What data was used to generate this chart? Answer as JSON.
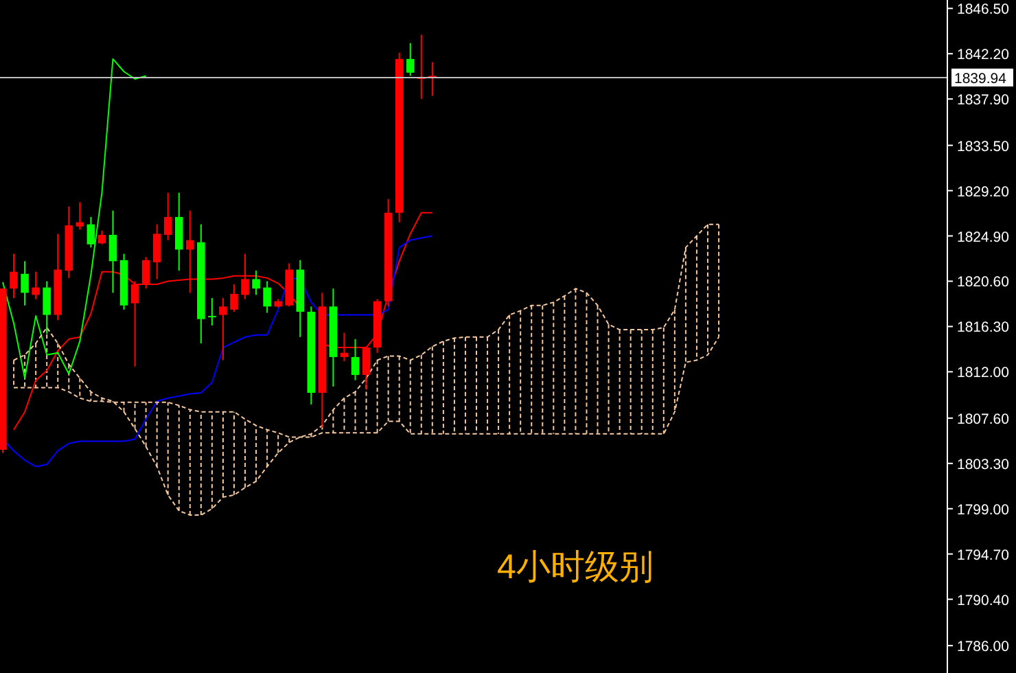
{
  "chart_data": {
    "type": "candlestick",
    "categories": [
      null,
      null,
      null,
      null,
      null,
      null,
      null,
      null,
      null,
      null,
      null,
      null,
      null,
      null,
      null,
      null,
      null,
      null,
      null,
      null,
      null,
      null,
      null,
      null,
      null,
      null,
      null,
      null,
      null,
      null,
      null,
      null,
      null,
      null,
      null,
      null,
      null,
      null,
      null,
      null,
      null,
      null,
      null,
      null,
      null,
      null,
      null,
      null,
      null,
      null,
      null,
      null,
      null,
      null,
      null,
      null,
      null,
      null,
      null,
      null,
      null,
      null,
      null,
      null,
      null,
      null,
      null,
      null,
      null,
      null,
      null,
      null,
      null,
      null,
      null,
      null,
      null,
      null,
      null,
      null,
      null,
      null,
      null,
      null,
      null,
      null
    ],
    "ohlc": [
      [
        1804.6,
        1819.9,
        1804.3,
        1819.9
      ],
      [
        1819.9,
        1823.2,
        1819.0,
        1821.5
      ],
      [
        1821.3,
        1822.5,
        1818.3,
        1819.5
      ],
      [
        1819.3,
        1821.5,
        1818.9,
        1820.0
      ],
      [
        1820.0,
        1820.6,
        1815.6,
        1817.4
      ],
      [
        1817.4,
        1825.1,
        1816.9,
        1821.7
      ],
      [
        1821.6,
        1827.7,
        1820.9,
        1825.9
      ],
      [
        1825.8,
        1828.1,
        1825.5,
        1826.2
      ],
      [
        1826.0,
        1826.7,
        1823.8,
        1824.1
      ],
      [
        1824.2,
        1825.4,
        1824.1,
        1825.0
      ],
      [
        1825.0,
        1827.3,
        1819.5,
        1822.5
      ],
      [
        1822.6,
        1823.2,
        1817.9,
        1818.3
      ],
      [
        1818.5,
        1820.6,
        1812.5,
        1820.3
      ],
      [
        1820.3,
        1822.9,
        1819.9,
        1822.6
      ],
      [
        1822.4,
        1826.0,
        1820.8,
        1825.1
      ],
      [
        1825.0,
        1829.0,
        1824.5,
        1826.7
      ],
      [
        1826.7,
        1829.0,
        1821.6,
        1823.6
      ],
      [
        1823.6,
        1827.3,
        1819.5,
        1824.5
      ],
      [
        1824.3,
        1826.0,
        1814.7,
        1817.0
      ],
      [
        1817.3,
        1819.0,
        1816.4,
        1817.2
      ],
      [
        1817.4,
        1819.0,
        1813.1,
        1818.2
      ],
      [
        1817.9,
        1820.3,
        1817.7,
        1819.4
      ],
      [
        1819.3,
        1823.2,
        1818.9,
        1820.8
      ],
      [
        1820.8,
        1821.6,
        1819.3,
        1819.9
      ],
      [
        1820.0,
        1820.6,
        1817.6,
        1818.2
      ],
      [
        1818.2,
        1818.9,
        1818.1,
        1818.7
      ],
      [
        1818.3,
        1822.3,
        1818.2,
        1821.7
      ],
      [
        1821.7,
        1822.6,
        1815.3,
        1817.7
      ],
      [
        1817.7,
        1818.2,
        1808.9,
        1810.0
      ],
      [
        1810.0,
        1819.5,
        1806.7,
        1818.2
      ],
      [
        1818.2,
        1819.9,
        1810.6,
        1813.4
      ],
      [
        1813.4,
        1815.7,
        1813.0,
        1813.8
      ],
      [
        1813.4,
        1815.1,
        1811.2,
        1811.7
      ],
      [
        1811.7,
        1814.4,
        1810.3,
        1814.3
      ],
      [
        1814.3,
        1818.9,
        1813.8,
        1818.7
      ],
      [
        1818.7,
        1828.4,
        1818.2,
        1827.1
      ],
      [
        1827.1,
        1842.3,
        1826.2,
        1841.7
      ],
      [
        1841.7,
        1843.2,
        1840.1,
        1840.4
      ],
      [
        1839.8,
        1844.0,
        1837.9,
        1840.0
      ],
      [
        1839.9,
        1841.4,
        1838.2,
        1840.1
      ],
      null,
      null,
      null,
      null,
      null,
      null,
      null,
      null,
      null,
      null,
      null,
      null,
      null,
      null,
      null,
      null,
      null,
      null,
      null,
      null,
      null,
      null,
      null,
      null,
      null,
      null,
      null,
      null,
      null,
      null,
      null,
      null,
      null,
      null,
      null,
      null,
      null,
      null,
      null,
      null,
      null,
      null,
      null,
      null,
      null,
      null
    ],
    "series": [
      {
        "type": "line",
        "color": "#ff0000",
        "values": [
          null,
          1806.5,
          1808.2,
          1811.2,
          1812.1,
          1814.0,
          1815.1,
          1815.3,
          1817.5,
          1821.5,
          1821.5,
          1821.2,
          1820.3,
          1820.3,
          1820.3,
          1820.6,
          1820.7,
          1820.8,
          1820.8,
          1820.8,
          1820.9,
          1821.1,
          1821.1,
          1821.1,
          1820.9,
          1820.4,
          1819.4,
          1818.1,
          null,
          1814.7,
          1814.3,
          1814.3,
          1814.3,
          1814.3,
          1815.6,
          1819.3,
          1822.5,
          1825.1,
          1827.1,
          1827.1,
          null,
          null,
          null,
          null,
          null,
          null,
          null,
          null,
          null,
          null,
          null,
          null,
          null,
          null,
          null,
          null,
          null,
          null,
          null,
          null,
          null,
          null,
          null,
          null,
          null,
          null,
          null,
          null,
          null,
          null,
          null,
          null,
          null,
          null,
          null,
          null,
          null,
          null,
          null,
          null,
          null,
          null,
          null,
          null,
          null,
          null
        ]
      },
      {
        "type": "line",
        "color": "#0000ff",
        "values": [
          1805.6,
          1804.5,
          1803.6,
          1803.0,
          1803.2,
          1804.5,
          1805.2,
          1805.4,
          1805.4,
          1805.4,
          1805.4,
          1805.4,
          1805.6,
          1807.5,
          1809.2,
          1809.5,
          1809.7,
          1809.9,
          1810.0,
          1811.0,
          1814.3,
          1814.8,
          1815.3,
          1815.5,
          1815.5,
          1817.9,
          1820.9,
          1820.8,
          1818.6,
          1817.4,
          1817.4,
          1817.4,
          1817.4,
          1817.4,
          1817.4,
          1817.9,
          1823.8,
          1824.5,
          1824.7,
          1824.9,
          null,
          null,
          null,
          null,
          null,
          null,
          null,
          null,
          null,
          null,
          null,
          null,
          null,
          null,
          null,
          null,
          null,
          null,
          null,
          null,
          null,
          null,
          null,
          null,
          null,
          null,
          null,
          null,
          null,
          null,
          null,
          null,
          null,
          null,
          null,
          null,
          null,
          null,
          null,
          null,
          null,
          null,
          null,
          null,
          null,
          null
        ]
      },
      {
        "type": "line",
        "color": "#00ff00",
        "values": [
          1820.5,
          1816.6,
          1811.4,
          1817.3,
          1813.6,
          1813.8,
          1811.8,
          1814.9,
          1821.2,
          1829.0,
          1841.7,
          1840.5,
          1839.8,
          1840.1,
          null,
          null,
          null,
          null,
          null,
          null,
          null,
          null,
          null,
          null,
          null,
          null,
          null,
          null,
          null,
          null,
          null,
          null,
          null,
          null,
          null,
          null,
          null,
          null,
          null,
          null,
          null,
          null,
          null,
          null,
          null,
          null,
          null,
          null,
          null,
          null,
          null,
          null,
          null,
          null,
          null,
          null,
          null,
          null,
          null,
          null,
          null,
          null,
          null,
          null,
          null,
          null,
          null,
          null,
          null,
          null,
          null,
          null,
          null,
          null,
          null,
          null,
          null,
          null,
          null,
          null,
          null,
          null,
          null,
          null,
          null,
          null
        ]
      },
      {
        "type": "line",
        "color": "#f5c8a0",
        "line_style": "dashed",
        "values": [
          null,
          1813.1,
          1813.6,
          1814.7,
          1816.2,
          1814.7,
          1812.7,
          1811.4,
          1810.1,
          1809.5,
          1809.2,
          1808.2,
          1806.6,
          1804.9,
          1803.0,
          1800.3,
          1798.8,
          1798.4,
          1798.4,
          1799.0,
          1800.1,
          1800.3,
          1801.0,
          1801.6,
          1803.0,
          1804.3,
          1805.3,
          1805.8,
          1806.1,
          1806.9,
          1808.4,
          1809.5,
          1810.1,
          1811.4,
          1813.1,
          1813.5,
          1813.5,
          1813.1,
          1813.6,
          1814.4,
          1814.9,
          1815.2,
          1815.3,
          1815.3,
          1815.3,
          1816.0,
          1817.4,
          1817.8,
          1818.3,
          1818.3,
          1818.6,
          1819.2,
          1819.9,
          1819.5,
          1818.3,
          1816.5,
          1816.0,
          1816.0,
          1816.0,
          1816.0,
          1816.2,
          1817.9,
          1823.8,
          1824.9,
          1826.0,
          1826.0,
          null,
          null,
          null,
          null,
          null,
          null,
          null,
          null,
          null,
          null,
          null,
          null,
          null,
          null,
          null,
          null,
          null,
          null,
          null,
          null
        ]
      },
      {
        "type": "line",
        "color": "#f5c8a0",
        "line_style": "dashed",
        "values": [
          null,
          1810.5,
          1810.5,
          1810.5,
          1810.5,
          1810.5,
          1810.1,
          1809.5,
          1809.2,
          1809.2,
          1809.1,
          1809.1,
          1809.1,
          1809.1,
          1809.1,
          1809.1,
          1808.8,
          1808.4,
          1808.2,
          1808.2,
          1808.2,
          1808.2,
          1807.5,
          1806.9,
          1806.5,
          1806.2,
          1805.8,
          1805.8,
          1805.8,
          1806.2,
          1806.2,
          1806.2,
          1806.2,
          1806.2,
          1806.2,
          1807.3,
          1807.3,
          1806.1,
          1806.1,
          1806.1,
          1806.1,
          1806.1,
          1806.1,
          1806.1,
          1806.1,
          1806.1,
          1806.1,
          1806.1,
          1806.1,
          1806.1,
          1806.1,
          1806.1,
          1806.1,
          1806.1,
          1806.1,
          1806.1,
          1806.1,
          1806.1,
          1806.1,
          1806.1,
          1806.1,
          1808.2,
          1812.9,
          1813.1,
          1813.6,
          1815.3,
          null,
          null,
          null,
          null,
          null,
          null,
          null,
          null,
          null,
          null,
          null,
          null,
          null,
          null,
          null,
          null,
          null,
          null,
          null,
          null
        ]
      }
    ],
    "ylim": [
      1783.4,
      1847.3
    ],
    "yticks": [
      {
        "value": 1846.5,
        "label": "1846.50"
      },
      {
        "value": 1842.2,
        "label": "1842.20"
      },
      {
        "value": 1837.9,
        "label": "1837.90"
      },
      {
        "value": 1833.5,
        "label": "1833.50"
      },
      {
        "value": 1829.2,
        "label": "1829.20"
      },
      {
        "value": 1824.9,
        "label": "1824.90"
      },
      {
        "value": 1820.6,
        "label": "1820.60"
      },
      {
        "value": 1816.3,
        "label": "1816.30"
      },
      {
        "value": 1812.0,
        "label": "1812.00"
      },
      {
        "value": 1807.6,
        "label": "1807.60"
      },
      {
        "value": 1803.3,
        "label": "1803.30"
      },
      {
        "value": 1799.0,
        "label": "1799.00"
      },
      {
        "value": 1794.7,
        "label": "1794.70"
      },
      {
        "value": 1790.4,
        "label": "1790.40"
      },
      {
        "value": 1786.0,
        "label": "1786.00"
      }
    ],
    "ref_lines": [
      {
        "axis": "y",
        "value": 1839.94,
        "label": "1839.94",
        "color": "#c0c0c0"
      }
    ],
    "tick_labels": "y",
    "annotations": [
      "4小时级别"
    ]
  }
}
